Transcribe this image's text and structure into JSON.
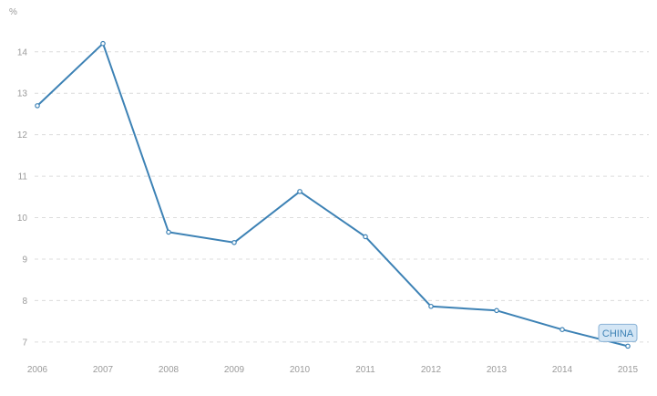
{
  "chart_data": {
    "type": "line",
    "unit_label": "%",
    "x": [
      "2006",
      "2007",
      "2008",
      "2009",
      "2010",
      "2011",
      "2012",
      "2013",
      "2014",
      "2015"
    ],
    "series": [
      {
        "name": "CHINA",
        "values": [
          12.7,
          14.2,
          9.65,
          9.4,
          10.63,
          9.54,
          7.86,
          7.76,
          7.3,
          6.9
        ],
        "color": "#3d82b5"
      }
    ],
    "y_ticks": [
      7,
      8,
      9,
      10,
      11,
      12,
      13,
      14
    ],
    "ylim": [
      6.6,
      14.7
    ],
    "grid": true,
    "grid_style": "dashed-horizontal",
    "legend_placement": "end-of-line"
  }
}
